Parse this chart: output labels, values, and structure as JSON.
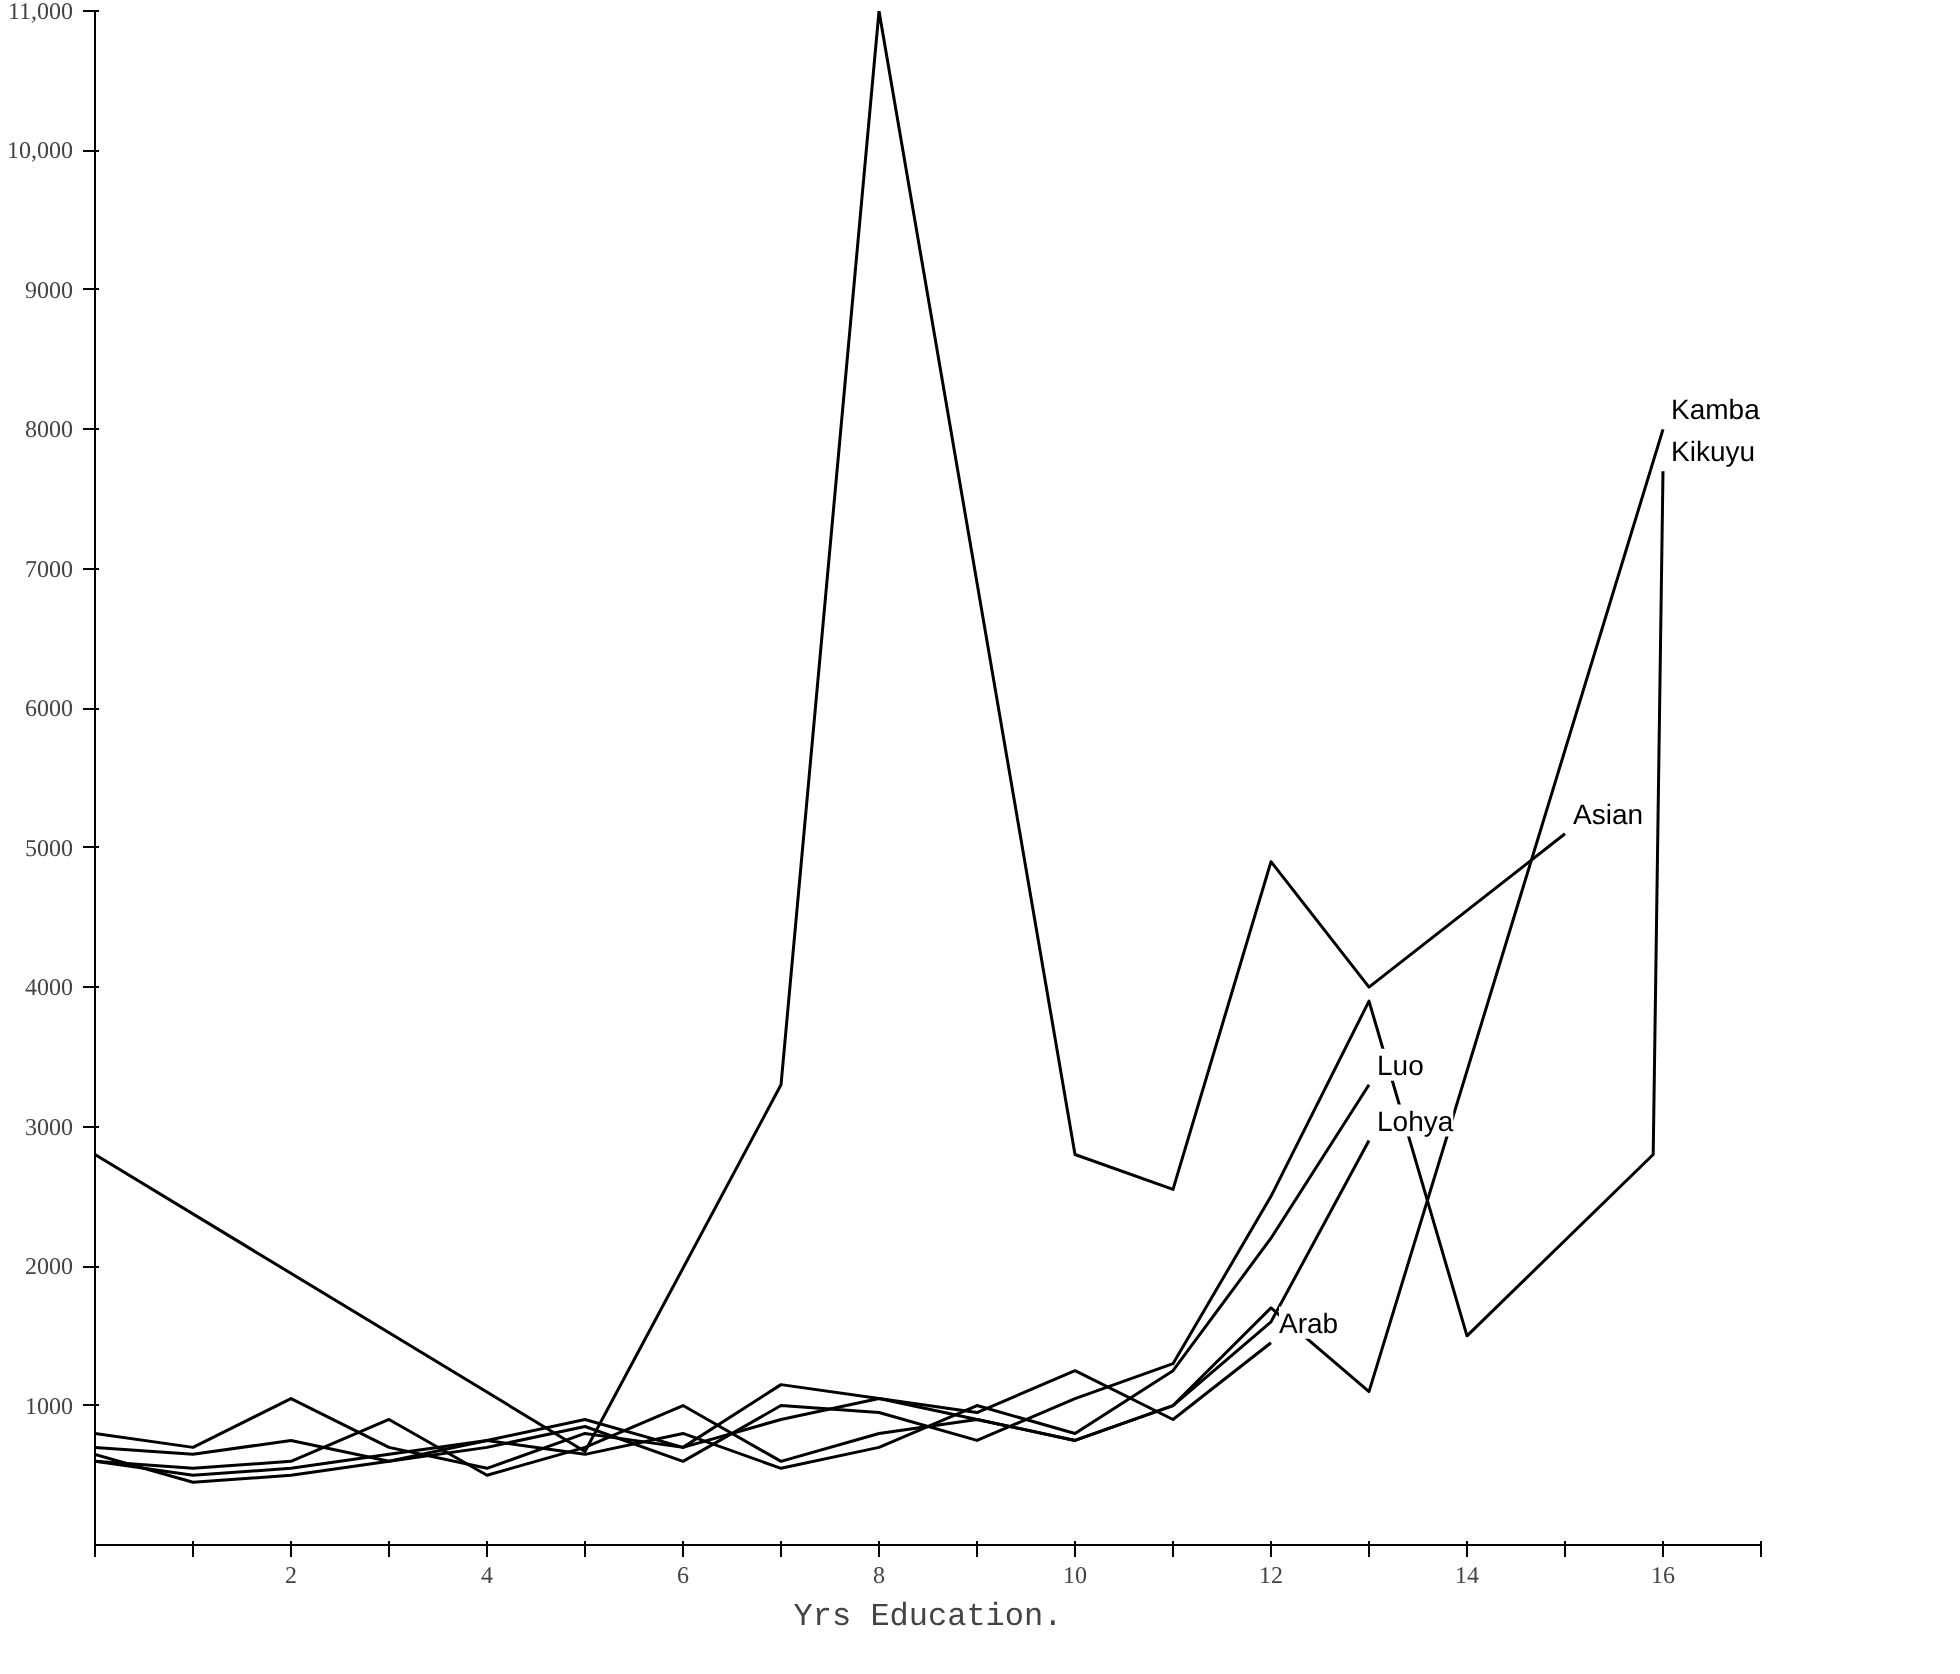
{
  "chart_data": {
    "type": "line",
    "xlabel": "Yrs Education.",
    "xlim": [
      0,
      17
    ],
    "ylim": [
      0,
      11000
    ],
    "xticks": [
      {
        "value": 0,
        "label": null
      },
      {
        "value": 1,
        "label": null
      },
      {
        "value": 2,
        "label": "2"
      },
      {
        "value": 3,
        "label": null
      },
      {
        "value": 4,
        "label": "4"
      },
      {
        "value": 5,
        "label": null
      },
      {
        "value": 6,
        "label": "6"
      },
      {
        "value": 7,
        "label": null
      },
      {
        "value": 8,
        "label": "8"
      },
      {
        "value": 9,
        "label": null
      },
      {
        "value": 10,
        "label": "10"
      },
      {
        "value": 11,
        "label": null
      },
      {
        "value": 12,
        "label": "12"
      },
      {
        "value": 13,
        "label": null
      },
      {
        "value": 14,
        "label": "14"
      },
      {
        "value": 15,
        "label": null
      },
      {
        "value": 16,
        "label": "16"
      },
      {
        "value": 17,
        "label": null
      }
    ],
    "yticks": [
      1000,
      2000,
      3000,
      4000,
      5000,
      6000,
      7000,
      8000,
      9000,
      {
        "value": 10000,
        "label": "10,000"
      },
      {
        "value": 11000,
        "label": "11,000"
      }
    ],
    "grid": false,
    "legend": false,
    "marker": "none",
    "line_style": "solid",
    "series": [
      {
        "name": "Asian",
        "color": "#000000",
        "x": [
          0,
          5,
          7,
          8,
          10,
          11,
          12,
          13,
          15
        ],
        "values": [
          2800,
          670,
          3300,
          11000,
          2800,
          2550,
          4900,
          4000,
          5100
        ]
      },
      {
        "name": "Kamba",
        "color": "#000000",
        "x": [
          0,
          1,
          2,
          3,
          4,
          5,
          6,
          7,
          8,
          9,
          10,
          11,
          12,
          13,
          16
        ],
        "values": [
          800,
          700,
          1050,
          700,
          550,
          800,
          700,
          1150,
          1050,
          900,
          750,
          1000,
          1700,
          1100,
          8000
        ]
      },
      {
        "name": "Kikuyu",
        "color": "#000000",
        "x": [
          0,
          1,
          2,
          3,
          4,
          5,
          6,
          7,
          8,
          9,
          10,
          11,
          12,
          13,
          14,
          15.9,
          16
        ],
        "values": [
          650,
          450,
          500,
          600,
          700,
          850,
          600,
          1000,
          950,
          750,
          1050,
          1300,
          2500,
          3900,
          1500,
          2800,
          7700
        ]
      },
      {
        "name": "Lohya",
        "color": "#000000",
        "x": [
          0,
          1,
          2,
          3,
          4,
          5,
          6,
          7,
          8,
          9,
          10,
          11,
          12,
          13
        ],
        "values": [
          600,
          550,
          600,
          900,
          500,
          700,
          1000,
          600,
          800,
          900,
          750,
          1000,
          1600,
          2900
        ]
      },
      {
        "name": "Luo",
        "color": "#000000",
        "x": [
          0,
          1,
          2,
          3,
          4,
          5,
          6,
          7,
          8,
          9,
          10,
          11,
          12,
          13
        ],
        "values": [
          700,
          650,
          750,
          600,
          750,
          650,
          800,
          550,
          700,
          1000,
          800,
          1250,
          2200,
          3300
        ]
      },
      {
        "name": "Arab",
        "color": "#000000",
        "x": [
          0,
          1,
          2,
          3,
          4,
          5,
          6,
          7,
          8,
          9,
          10,
          11,
          12
        ],
        "values": [
          600,
          500,
          550,
          650,
          750,
          900,
          700,
          900,
          1050,
          950,
          1250,
          900,
          1450
        ]
      }
    ]
  }
}
